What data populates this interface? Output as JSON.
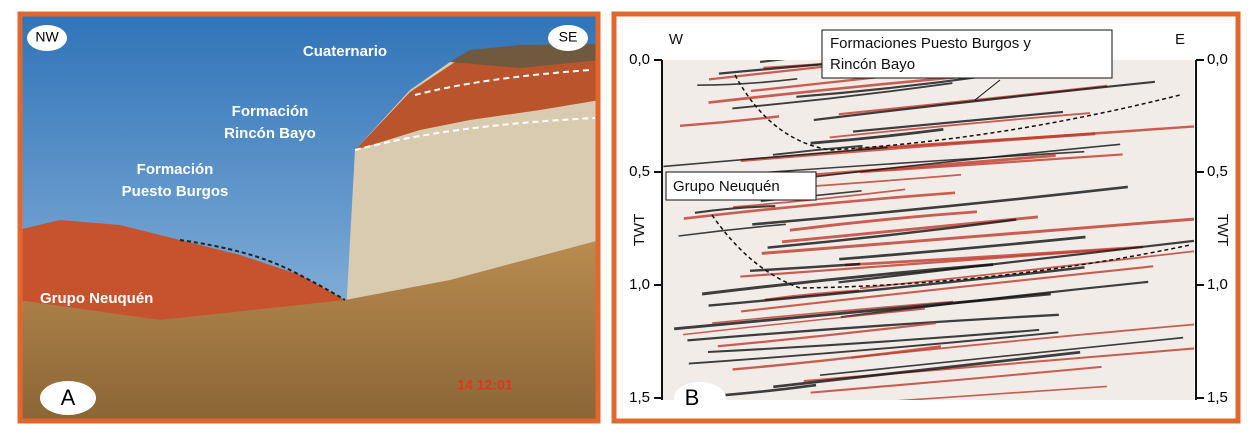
{
  "panel_a": {
    "corner_left": "NW",
    "corner_right": "SE",
    "labels": {
      "cuaternario": "Cuaternario",
      "rincon_bayo": [
        "Formación",
        "Rincón Bayo"
      ],
      "puesto_burgos": [
        "Formación",
        "Puesto Burgos"
      ],
      "grupo_neuquen": "Grupo Neuquén"
    },
    "letter": "A",
    "timestamp": "14 12:01"
  },
  "panel_b": {
    "corner_left": "W",
    "corner_right": "E",
    "labels": {
      "formaciones": [
        "Formaciones Puesto Burgos y",
        "Rincón Bayo"
      ],
      "grupo_neuquen": "Grupo Neuquén"
    },
    "axis_title_left": "TWT",
    "axis_title_right": "TWT",
    "ticks_left": [
      "0,0",
      "0,5",
      "1,0",
      "1,5"
    ],
    "ticks_right": [
      "0,0",
      "0,5",
      "1,0",
      "1,5"
    ],
    "letter": "B"
  }
}
